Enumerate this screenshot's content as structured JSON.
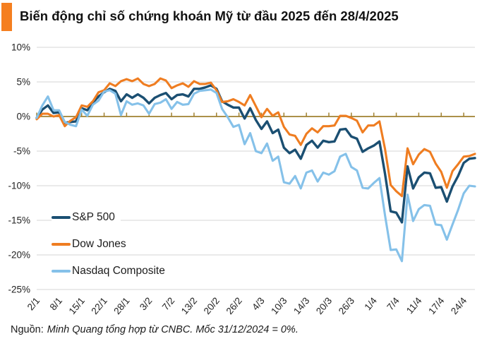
{
  "title": "Biến động chỉ số chứng khoán Mỹ từ đầu 2025 đến 28/4/2025",
  "accent_color": "#F57F20",
  "source": {
    "prefix": "Nguồn:",
    "text": "Minh Quang tổng hợp từ CNBC. Mốc 31/12/2024 = 0%."
  },
  "chart_data": {
    "type": "line",
    "title": "Biến động chỉ số chứng khoán Mỹ từ đầu 2025 đến 28/4/2025",
    "baseline_note": "Mốc 31/12/2024 = 0%",
    "ylim": [
      -25,
      10
    ],
    "grid": "horizontal",
    "legend_position": "inside-bottom-left",
    "colors": {
      "zero_axis": "#A08030",
      "gridline": "#DEDEDE",
      "tick_text": "#222222"
    },
    "y_tick_values": [
      10,
      5,
      0,
      -5,
      -10,
      -15,
      -20,
      -25
    ],
    "y_tick_labels": [
      "10%",
      "5%",
      "0%",
      "-5%",
      "-10%",
      "-15%",
      "-20%",
      "-25%"
    ],
    "x_tick_labels": [
      "2/1",
      "8/1",
      "15/1",
      "22/1",
      "28/1",
      "3/2",
      "7/2",
      "13/2",
      "20/2",
      "26/2",
      "4/3",
      "10/3",
      "14/3",
      "20/3",
      "26/3",
      "1/4",
      "7/4",
      "11/4",
      "17/4",
      "24/4"
    ],
    "x_tick_indices": [
      0,
      4,
      8,
      12,
      16,
      20,
      24,
      28,
      32,
      36,
      40,
      44,
      48,
      52,
      56,
      60,
      64,
      68,
      72,
      76
    ],
    "series": [
      {
        "name": "S&P 500",
        "color": "#1B4F72",
        "values": [
          -0.2,
          1.0,
          1.6,
          0.5,
          0.6,
          -0.9,
          -0.8,
          -0.7,
          1.2,
          0.9,
          2.0,
          2.9,
          3.5,
          4.0,
          3.7,
          2.2,
          3.2,
          2.7,
          3.2,
          2.7,
          1.9,
          2.7,
          3.1,
          3.4,
          2.5,
          3.1,
          3.2,
          2.9,
          4.0,
          4.0,
          4.2,
          4.5,
          4.0,
          2.2,
          1.7,
          1.3,
          1.3,
          -0.3,
          1.2,
          -0.5,
          -1.8,
          -0.7,
          -2.4,
          -1.9,
          -4.5,
          -5.3,
          -4.8,
          -6.1,
          -4.1,
          -3.5,
          -4.5,
          -3.5,
          -3.7,
          -3.6,
          -1.9,
          -1.8,
          -2.9,
          -3.2,
          -5.1,
          -4.6,
          -4.2,
          -3.6,
          -8.3,
          -13.7,
          -13.9,
          -15.3,
          -7.2,
          -10.4,
          -8.8,
          -8.1,
          -8.2,
          -10.3,
          -10.2,
          -12.3,
          -10.1,
          -8.6,
          -6.7,
          -6.1,
          -6.0
        ]
      },
      {
        "name": "Dow Jones",
        "color": "#EF7D21",
        "values": [
          -0.4,
          0.4,
          0.4,
          0.0,
          0.2,
          -1.4,
          -0.6,
          -0.1,
          1.6,
          1.4,
          2.2,
          3.5,
          3.8,
          4.8,
          4.4,
          5.1,
          5.4,
          5.1,
          5.5,
          4.7,
          4.4,
          4.7,
          5.5,
          5.2,
          4.1,
          4.5,
          4.8,
          4.3,
          5.1,
          4.7,
          4.7,
          4.9,
          3.8,
          2.1,
          2.2,
          2.5,
          2.1,
          1.6,
          3.1,
          1.5,
          -0.1,
          1.1,
          0.1,
          0.6,
          -1.5,
          -2.6,
          -2.8,
          -4.1,
          -2.5,
          -1.7,
          -2.3,
          -1.4,
          -1.4,
          -1.3,
          0.1,
          0.1,
          -0.2,
          -0.6,
          -2.3,
          -1.3,
          -1.3,
          -0.7,
          -4.7,
          -9.9,
          -10.8,
          -11.5,
          -4.6,
          -6.9,
          -5.5,
          -4.7,
          -5.1,
          -6.8,
          -8.0,
          -10.3,
          -7.9,
          -6.9,
          -5.8,
          -5.7,
          -5.4
        ]
      },
      {
        "name": "Nasdaq Composite",
        "color": "#85C1E9",
        "values": [
          -0.2,
          1.6,
          2.9,
          0.9,
          0.9,
          -0.8,
          -1.2,
          -1.4,
          1.0,
          0.1,
          1.7,
          2.3,
          3.6,
          3.8,
          3.3,
          0.2,
          2.2,
          1.7,
          1.9,
          1.6,
          0.4,
          1.8,
          2.0,
          2.5,
          1.1,
          2.1,
          1.7,
          1.8,
          3.3,
          3.7,
          3.8,
          3.9,
          3.4,
          1.1,
          -0.1,
          -1.5,
          -1.2,
          -4.0,
          -2.4,
          -5.0,
          -5.3,
          -3.9,
          -6.4,
          -5.8,
          -9.5,
          -9.7,
          -8.6,
          -10.4,
          -8.1,
          -7.8,
          -9.4,
          -8.1,
          -8.4,
          -7.9,
          -5.8,
          -5.4,
          -7.3,
          -7.8,
          -10.3,
          -10.4,
          -9.6,
          -8.9,
          -14.3,
          -19.3,
          -19.2,
          -20.9,
          -11.3,
          -15.1,
          -13.4,
          -12.8,
          -12.9,
          -15.6,
          -15.7,
          -17.8,
          -15.6,
          -13.5,
          -11.1,
          -10.0,
          -10.1
        ]
      }
    ]
  }
}
